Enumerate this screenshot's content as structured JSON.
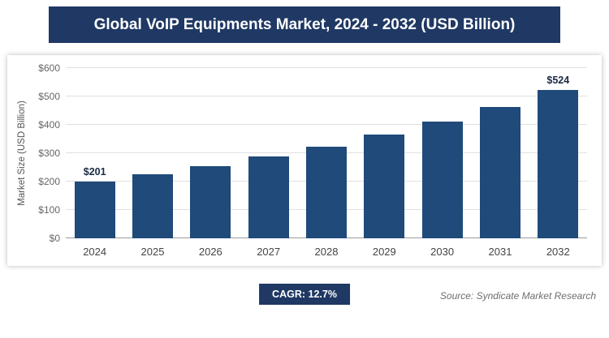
{
  "header": {
    "title": "Global VoIP Equipments Market, 2024 - 2032 (USD Billion)"
  },
  "footer": {
    "cagr_label": "CAGR: 12.7%",
    "source": "Source: Syndicate Market Research"
  },
  "colors": {
    "header_bg": "#1f3864",
    "bar": "#1f4a7a",
    "badge_bg": "#1f3864"
  },
  "chart_data": {
    "type": "bar",
    "title": "Global VoIP Equipments Market, 2024 - 2032 (USD Billion)",
    "categories": [
      "2024",
      "2025",
      "2026",
      "2027",
      "2028",
      "2029",
      "2030",
      "2031",
      "2032"
    ],
    "values": [
      201,
      227,
      255,
      288,
      324,
      365,
      412,
      464,
      524
    ],
    "data_labels": [
      "$201",
      "",
      "",
      "",
      "",
      "",
      "",
      "",
      "$524"
    ],
    "xlabel": "",
    "ylabel": "Market Size (USD Billion)",
    "ylim": [
      0,
      600
    ],
    "ytick_step": 100,
    "ytick_labels": [
      "$0",
      "$100",
      "$200",
      "$300",
      "$400",
      "$500",
      "$600"
    ],
    "grid": "horizontal",
    "legend": "none",
    "cagr": "12.7%"
  }
}
